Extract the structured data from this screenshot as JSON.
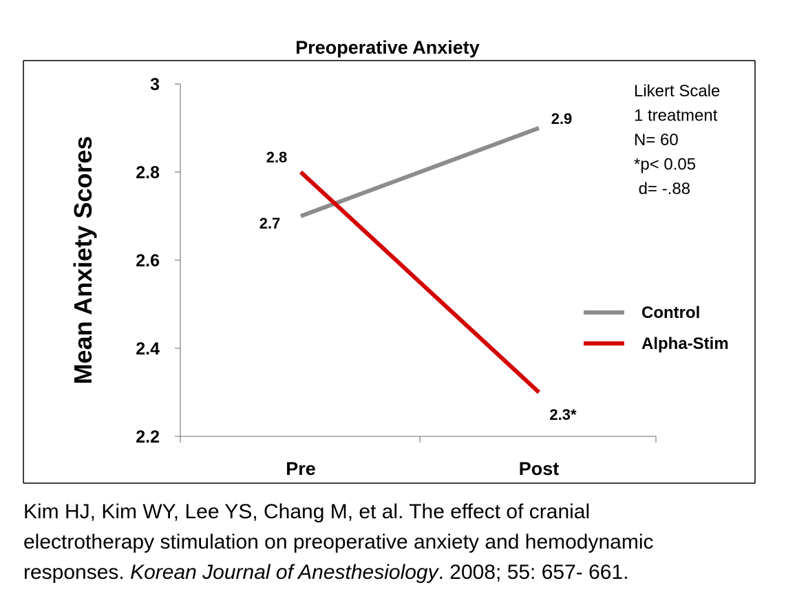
{
  "chart_data": {
    "type": "line",
    "title": "Preoperative Anxiety",
    "ylabel": "Mean Anxiety Scores",
    "xlabel": "",
    "categories": [
      "Pre",
      "Post"
    ],
    "ylim": [
      2.2,
      3.0
    ],
    "yticks": [
      2.2,
      2.4,
      2.6,
      2.8,
      3.0
    ],
    "ytick_labels": [
      "2.2",
      "2.4",
      "2.6",
      "2.8",
      "3"
    ],
    "grid": false,
    "legend_position": "right",
    "series": [
      {
        "name": "Control",
        "color": "#8c8c8c",
        "values": [
          2.7,
          2.9
        ],
        "labels": [
          "2.7",
          "2.9"
        ]
      },
      {
        "name": "Alpha-Stim",
        "color": "#d40000",
        "values": [
          2.8,
          2.3
        ],
        "labels": [
          "2.8",
          "2.3*"
        ]
      }
    ],
    "annotations": [
      "Likert Scale",
      "1 treatment",
      "N= 60",
      "*p< 0.05",
      " d= -.88"
    ]
  },
  "citation": {
    "line1": "Kim HJ, Kim WY, Lee YS, Chang M, et al. The effect of cranial",
    "line2": "electrotherapy stimulation on preoperative anxiety and hemodynamic",
    "line3_pre": "responses. ",
    "line3_journal": "Korean Journal of Anesthesiology",
    "line3_post": ". 2008; 55: 657- 661."
  }
}
